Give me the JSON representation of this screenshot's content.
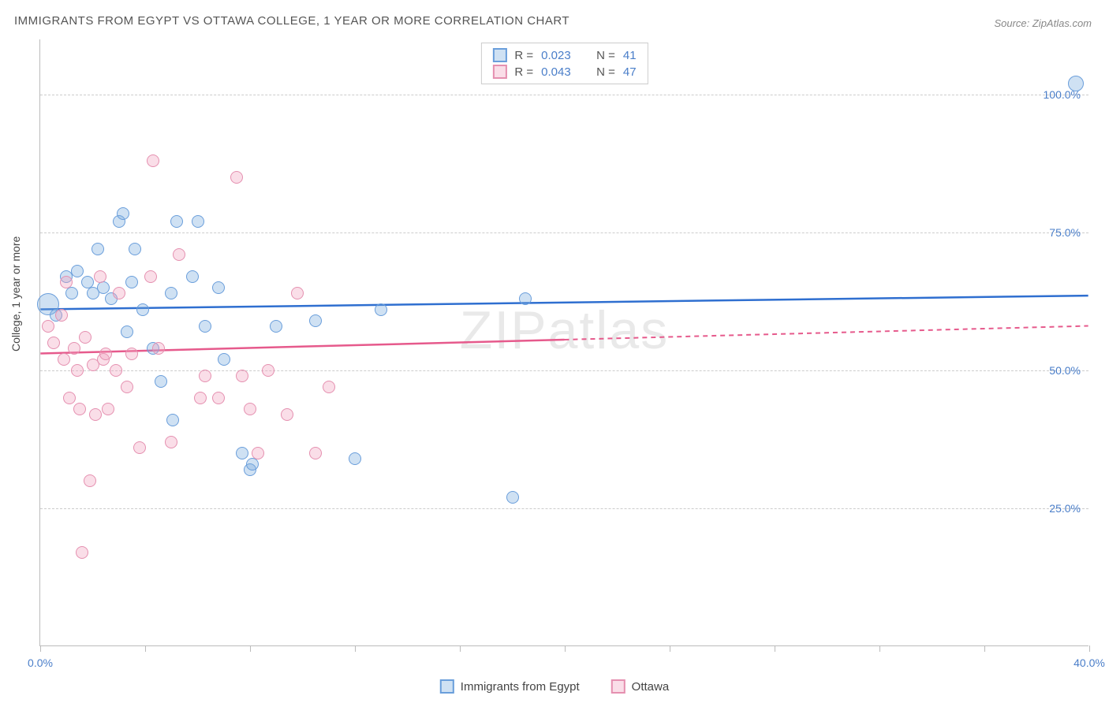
{
  "title": "IMMIGRANTS FROM EGYPT VS OTTAWA COLLEGE, 1 YEAR OR MORE CORRELATION CHART",
  "source_label": "Source: ZipAtlas.com",
  "watermark": "ZIPatlas",
  "chart": {
    "type": "scatter",
    "xlim": [
      0,
      40
    ],
    "ylim": [
      0,
      110
    ],
    "x_ticks": [
      0,
      4,
      8,
      12,
      16,
      20,
      24,
      28,
      32,
      36,
      40
    ],
    "x_tick_labels": [
      "0.0%",
      "",
      "",
      "",
      "",
      "",
      "",
      "",
      "",
      "",
      "40.0%"
    ],
    "y_ticks": [
      25,
      50,
      75,
      100
    ],
    "y_tick_labels": [
      "25.0%",
      "50.0%",
      "75.0%",
      "100.0%"
    ],
    "ylabel": "College, 1 year or more",
    "background_color": "#ffffff",
    "grid_color": "#cccccc",
    "axis_color": "#bbbbbb",
    "tick_label_color": "#4a7ec9",
    "series": [
      {
        "name": "Immigrants from Egypt",
        "color_fill": "rgba(118,168,222,0.35)",
        "color_stroke": "#6a9edb",
        "trend_color": "#2f6fd0",
        "trend_dash_after_x": 40,
        "r_value": "0.023",
        "n_value": "41",
        "trend_y_at_x0": 61,
        "trend_y_at_x40": 63.5,
        "points": [
          {
            "x": 0.3,
            "y": 62,
            "r": 14
          },
          {
            "x": 0.6,
            "y": 60,
            "r": 8
          },
          {
            "x": 1.0,
            "y": 67,
            "r": 8
          },
          {
            "x": 1.2,
            "y": 64,
            "r": 8
          },
          {
            "x": 1.4,
            "y": 68,
            "r": 8
          },
          {
            "x": 1.8,
            "y": 66,
            "r": 8
          },
          {
            "x": 2.0,
            "y": 64,
            "r": 8
          },
          {
            "x": 2.2,
            "y": 72,
            "r": 8
          },
          {
            "x": 2.4,
            "y": 65,
            "r": 8
          },
          {
            "x": 2.7,
            "y": 63,
            "r": 8
          },
          {
            "x": 3.0,
            "y": 77,
            "r": 8
          },
          {
            "x": 3.15,
            "y": 78.5,
            "r": 8
          },
          {
            "x": 3.3,
            "y": 57,
            "r": 8
          },
          {
            "x": 3.5,
            "y": 66,
            "r": 8
          },
          {
            "x": 3.6,
            "y": 72,
            "r": 8
          },
          {
            "x": 3.9,
            "y": 61,
            "r": 8
          },
          {
            "x": 4.3,
            "y": 54,
            "r": 8
          },
          {
            "x": 4.6,
            "y": 48,
            "r": 8
          },
          {
            "x": 5.0,
            "y": 64,
            "r": 8
          },
          {
            "x": 5.05,
            "y": 41,
            "r": 8
          },
          {
            "x": 5.2,
            "y": 77,
            "r": 8
          },
          {
            "x": 5.8,
            "y": 67,
            "r": 8
          },
          {
            "x": 6.0,
            "y": 77,
            "r": 8
          },
          {
            "x": 6.3,
            "y": 58,
            "r": 8
          },
          {
            "x": 6.8,
            "y": 65,
            "r": 8
          },
          {
            "x": 7.0,
            "y": 52,
            "r": 8
          },
          {
            "x": 7.7,
            "y": 35,
            "r": 8
          },
          {
            "x": 8.0,
            "y": 32,
            "r": 8
          },
          {
            "x": 8.1,
            "y": 33,
            "r": 8
          },
          {
            "x": 9.0,
            "y": 58,
            "r": 8
          },
          {
            "x": 10.5,
            "y": 59,
            "r": 8
          },
          {
            "x": 12.0,
            "y": 34,
            "r": 8
          },
          {
            "x": 13.0,
            "y": 61,
            "r": 8
          },
          {
            "x": 18.0,
            "y": 27,
            "r": 8
          },
          {
            "x": 18.5,
            "y": 63,
            "r": 8
          },
          {
            "x": 39.5,
            "y": 102,
            "r": 10
          }
        ]
      },
      {
        "name": "Ottawa",
        "color_fill": "rgba(240,160,190,0.35)",
        "color_stroke": "#e590b0",
        "trend_color": "#e65a8c",
        "trend_dash_after_x": 20,
        "r_value": "0.043",
        "n_value": "47",
        "trend_y_at_x0": 53,
        "trend_y_at_x40": 58,
        "points": [
          {
            "x": 0.3,
            "y": 58,
            "r": 8
          },
          {
            "x": 0.5,
            "y": 55,
            "r": 8
          },
          {
            "x": 0.8,
            "y": 60,
            "r": 8
          },
          {
            "x": 0.9,
            "y": 52,
            "r": 8
          },
          {
            "x": 1.0,
            "y": 66,
            "r": 8
          },
          {
            "x": 1.1,
            "y": 45,
            "r": 8
          },
          {
            "x": 1.3,
            "y": 54,
            "r": 8
          },
          {
            "x": 1.4,
            "y": 50,
            "r": 8
          },
          {
            "x": 1.5,
            "y": 43,
            "r": 8
          },
          {
            "x": 1.6,
            "y": 17,
            "r": 8
          },
          {
            "x": 1.7,
            "y": 56,
            "r": 8
          },
          {
            "x": 1.9,
            "y": 30,
            "r": 8
          },
          {
            "x": 2.0,
            "y": 51,
            "r": 8
          },
          {
            "x": 2.1,
            "y": 42,
            "r": 8
          },
          {
            "x": 2.3,
            "y": 67,
            "r": 8
          },
          {
            "x": 2.4,
            "y": 52,
            "r": 8
          },
          {
            "x": 2.5,
            "y": 53,
            "r": 8
          },
          {
            "x": 2.6,
            "y": 43,
            "r": 8
          },
          {
            "x": 2.9,
            "y": 50,
            "r": 8
          },
          {
            "x": 3.0,
            "y": 64,
            "r": 8
          },
          {
            "x": 3.3,
            "y": 47,
            "r": 8
          },
          {
            "x": 3.5,
            "y": 53,
            "r": 8
          },
          {
            "x": 3.8,
            "y": 36,
            "r": 8
          },
          {
            "x": 4.2,
            "y": 67,
            "r": 8
          },
          {
            "x": 4.3,
            "y": 88,
            "r": 8
          },
          {
            "x": 4.5,
            "y": 54,
            "r": 8
          },
          {
            "x": 5.0,
            "y": 37,
            "r": 8
          },
          {
            "x": 5.3,
            "y": 71,
            "r": 8
          },
          {
            "x": 6.1,
            "y": 45,
            "r": 8
          },
          {
            "x": 6.3,
            "y": 49,
            "r": 8
          },
          {
            "x": 6.8,
            "y": 45,
            "r": 8
          },
          {
            "x": 7.5,
            "y": 85,
            "r": 8
          },
          {
            "x": 7.7,
            "y": 49,
            "r": 8
          },
          {
            "x": 8.0,
            "y": 43,
            "r": 8
          },
          {
            "x": 8.3,
            "y": 35,
            "r": 8
          },
          {
            "x": 8.7,
            "y": 50,
            "r": 8
          },
          {
            "x": 9.4,
            "y": 42,
            "r": 8
          },
          {
            "x": 9.8,
            "y": 64,
            "r": 8
          },
          {
            "x": 10.5,
            "y": 35,
            "r": 8
          },
          {
            "x": 11.0,
            "y": 47,
            "r": 8
          }
        ]
      }
    ]
  },
  "legend_top": {
    "rows": [
      {
        "swatch_fill": "rgba(118,168,222,0.35)",
        "swatch_stroke": "#6a9edb",
        "r": "0.023",
        "n": "41"
      },
      {
        "swatch_fill": "rgba(240,160,190,0.35)",
        "swatch_stroke": "#e590b0",
        "r": "0.043",
        "n": "47"
      }
    ]
  },
  "legend_bottom": {
    "items": [
      {
        "swatch_fill": "rgba(118,168,222,0.35)",
        "swatch_stroke": "#6a9edb",
        "label": "Immigrants from Egypt"
      },
      {
        "swatch_fill": "rgba(240,160,190,0.35)",
        "swatch_stroke": "#e590b0",
        "label": "Ottawa"
      }
    ]
  }
}
